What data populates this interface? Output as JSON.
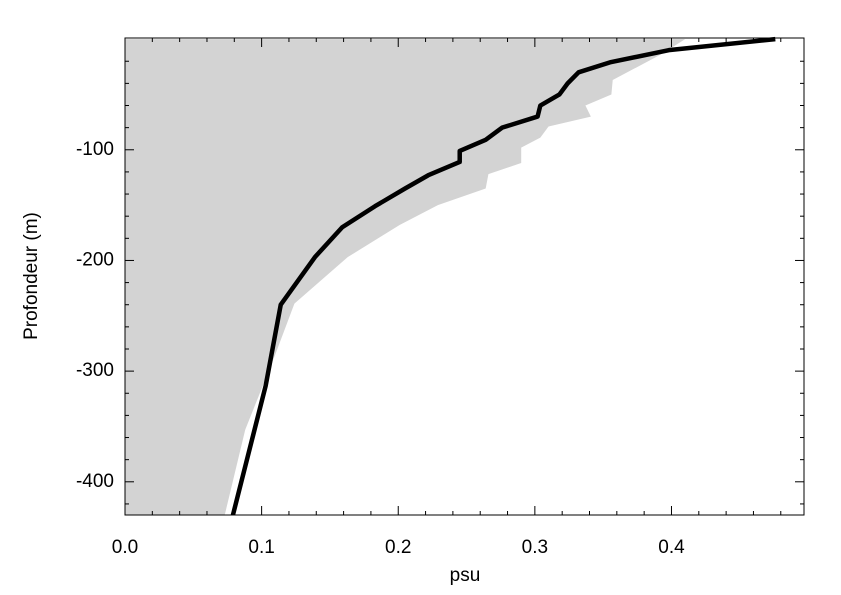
{
  "chart_data": {
    "type": "line",
    "xlabel": "psu",
    "ylabel": "Profondeur (m)",
    "xlim": [
      0,
      0.497
    ],
    "ylim": [
      -430,
      1
    ],
    "xticks": [
      {
        "value": 0,
        "label": "0.0"
      },
      0.1,
      0.2,
      0.3,
      0.4
    ],
    "yticks": [
      -100,
      -200,
      -300,
      -400
    ],
    "xminorticks": [
      0.02,
      0.04,
      0.06,
      0.08,
      0.12,
      0.14,
      0.16,
      0.18,
      0.22,
      0.24,
      0.26,
      0.28,
      0.32,
      0.34,
      0.36,
      0.38,
      0.42,
      0.44,
      0.46,
      0.48
    ],
    "yminorticks": [
      -20,
      -40,
      -60,
      -80,
      -120,
      -140,
      -160,
      -180,
      -220,
      -240,
      -260,
      -280,
      -320,
      -340,
      -360,
      -380,
      -420
    ],
    "series": [
      {
        "type": "area",
        "color": "#d3d3d3",
        "x": [
          0.41,
          0.392,
          0.357,
          0.356,
          0.337,
          0.341,
          0.31,
          0.304,
          0.29,
          0.29,
          0.266,
          0.264,
          0.229,
          0.201,
          0.163,
          0.124,
          0.11,
          0.088,
          0.073
        ],
        "y": [
          0,
          -14,
          -37,
          -50,
          -60,
          -70,
          -79,
          -89,
          -98,
          -112,
          -122,
          -135,
          -150,
          -168,
          -197,
          -239,
          -285,
          -353,
          -430
        ]
      },
      {
        "type": "line",
        "color": "#000000",
        "x": [
          0.476,
          0.398,
          0.355,
          0.332,
          0.324,
          0.318,
          0.304,
          0.302,
          0.276,
          0.264,
          0.245,
          0.245,
          0.222,
          0.205,
          0.183,
          0.159,
          0.139,
          0.114,
          0.103,
          0.079
        ],
        "y": [
          0,
          -10,
          -21,
          -30,
          -40,
          -50,
          -60,
          -70,
          -80,
          -91,
          -101,
          -111,
          -123,
          -135,
          -151,
          -170,
          -197,
          -240,
          -313,
          -430
        ]
      }
    ]
  }
}
